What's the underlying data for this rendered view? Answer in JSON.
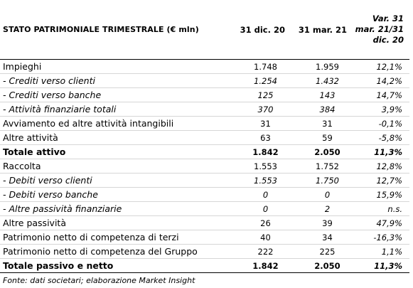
{
  "header": {
    "title": "STATO PATRIMONIALE TRIMESTRALE (€ mln)",
    "col_a": "31 dic. 20",
    "col_b": "31 mar. 21",
    "col_var": [
      "Var. 31",
      "mar. 21/31",
      "dic. 20"
    ]
  },
  "rows": [
    {
      "label": "Impieghi",
      "a": "1.748",
      "b": "1.959",
      "var": "12,1%",
      "style": "normal"
    },
    {
      "label": "- Crediti verso clienti",
      "a": "1.254",
      "b": "1.432",
      "var": "14,2%",
      "style": "italic"
    },
    {
      "label": "- Crediti verso banche",
      "a": "125",
      "b": "143",
      "var": "14,7%",
      "style": "italic"
    },
    {
      "label": "- Attività finanziarie totali",
      "a": "370",
      "b": "384",
      "var": "3,9%",
      "style": "italic"
    },
    {
      "label": "Avviamento ed altre attività intangibili",
      "a": "31",
      "b": "31",
      "var": "-0,1%",
      "style": "normal"
    },
    {
      "label": "Altre attività",
      "a": "63",
      "b": "59",
      "var": "-5,8%",
      "style": "normal"
    },
    {
      "label": "Totale attivo",
      "a": "1.842",
      "b": "2.050",
      "var": "11,3%",
      "style": "bold"
    },
    {
      "label": "Raccolta",
      "a": "1.553",
      "b": "1.752",
      "var": "12,8%",
      "style": "normal"
    },
    {
      "label": "- Debiti verso clienti",
      "a": "1.553",
      "b": "1.750",
      "var": "12,7%",
      "style": "italic"
    },
    {
      "label": "- Debiti verso banche",
      "a": "0",
      "b": "0",
      "var": "15,9%",
      "style": "italic"
    },
    {
      "label": "- Altre passività finanziarie",
      "a": "0",
      "b": "2",
      "var": "n.s.",
      "style": "italic"
    },
    {
      "label": "Altre passività",
      "a": "26",
      "b": "39",
      "var": "47,9%",
      "style": "normal"
    },
    {
      "label": "Patrimonio netto di competenza di terzi",
      "a": "40",
      "b": "34",
      "var": "-16,3%",
      "style": "normal"
    },
    {
      "label": "Patrimonio netto di competenza del Gruppo",
      "a": "222",
      "b": "225",
      "var": "1,1%",
      "style": "normal"
    },
    {
      "label": "Totale passivo e netto",
      "a": "1.842",
      "b": "2.050",
      "var": "11,3%",
      "style": "bold"
    }
  ],
  "footer": {
    "source": "Fonte: dati societari; elaborazione Market Insight"
  }
}
